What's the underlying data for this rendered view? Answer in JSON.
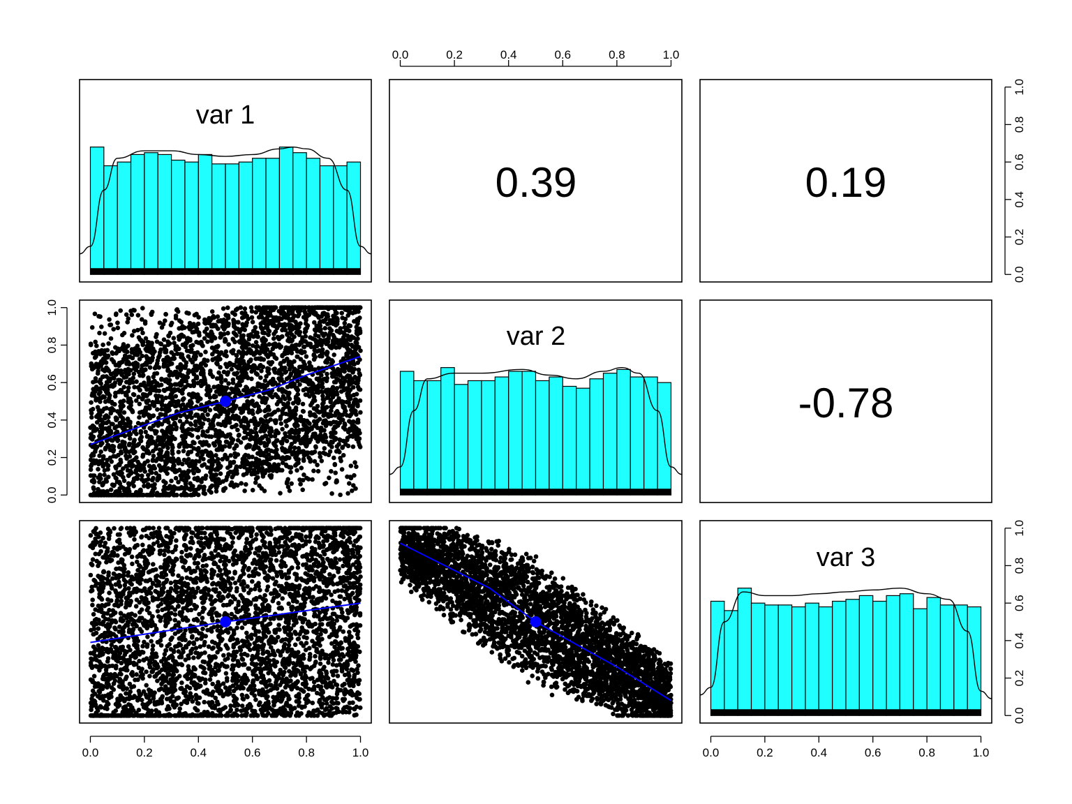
{
  "chart_data": {
    "type": "scatter",
    "layout": "pairs-matrix",
    "variables": [
      "var 1",
      "var 2",
      "var 3"
    ],
    "axis_range": [
      0,
      1
    ],
    "tick_labels": [
      "0.0",
      "0.2",
      "0.4",
      "0.6",
      "0.8",
      "1.0"
    ],
    "correlations": [
      {
        "row": 1,
        "col": 2,
        "value": "0.39"
      },
      {
        "row": 1,
        "col": 3,
        "value": "0.19"
      },
      {
        "row": 2,
        "col": 3,
        "value": "-0.78"
      }
    ],
    "histograms": [
      {
        "variable": "var 1",
        "counts": [
          0.68,
          0.58,
          0.6,
          0.64,
          0.65,
          0.64,
          0.61,
          0.6,
          0.64,
          0.59,
          0.59,
          0.6,
          0.62,
          0.62,
          0.68,
          0.65,
          0.62,
          0.58,
          0.58,
          0.6
        ],
        "density": [
          [
            0,
            0.15
          ],
          [
            0.05,
            0.45
          ],
          [
            0.1,
            0.62
          ],
          [
            0.2,
            0.66
          ],
          [
            0.3,
            0.66
          ],
          [
            0.4,
            0.64
          ],
          [
            0.5,
            0.63
          ],
          [
            0.6,
            0.64
          ],
          [
            0.7,
            0.67
          ],
          [
            0.75,
            0.68
          ],
          [
            0.8,
            0.67
          ],
          [
            0.88,
            0.62
          ],
          [
            0.95,
            0.45
          ],
          [
            1.0,
            0.15
          ]
        ]
      },
      {
        "variable": "var 2",
        "counts": [
          0.66,
          0.61,
          0.61,
          0.68,
          0.59,
          0.61,
          0.61,
          0.63,
          0.66,
          0.66,
          0.61,
          0.63,
          0.58,
          0.57,
          0.62,
          0.65,
          0.67,
          0.63,
          0.63,
          0.6
        ],
        "density": [
          [
            0,
            0.15
          ],
          [
            0.05,
            0.45
          ],
          [
            0.1,
            0.62
          ],
          [
            0.2,
            0.65
          ],
          [
            0.3,
            0.65
          ],
          [
            0.45,
            0.67
          ],
          [
            0.55,
            0.64
          ],
          [
            0.65,
            0.62
          ],
          [
            0.75,
            0.66
          ],
          [
            0.82,
            0.68
          ],
          [
            0.88,
            0.65
          ],
          [
            0.95,
            0.45
          ],
          [
            1.0,
            0.15
          ]
        ]
      },
      {
        "variable": "var 3",
        "counts": [
          0.61,
          0.56,
          0.68,
          0.6,
          0.59,
          0.59,
          0.58,
          0.6,
          0.58,
          0.61,
          0.62,
          0.64,
          0.61,
          0.64,
          0.65,
          0.57,
          0.63,
          0.59,
          0.59,
          0.58
        ],
        "density": [
          [
            0,
            0.15
          ],
          [
            0.05,
            0.5
          ],
          [
            0.12,
            0.66
          ],
          [
            0.2,
            0.64
          ],
          [
            0.3,
            0.64
          ],
          [
            0.4,
            0.65
          ],
          [
            0.5,
            0.66
          ],
          [
            0.6,
            0.67
          ],
          [
            0.7,
            0.68
          ],
          [
            0.8,
            0.65
          ],
          [
            0.88,
            0.62
          ],
          [
            0.95,
            0.45
          ],
          [
            1.0,
            0.13
          ]
        ]
      }
    ],
    "scatter_panels": [
      {
        "row": 2,
        "col": 1,
        "x": "var 1",
        "y": "var 2",
        "fit_line": [
          [
            0,
            0.27
          ],
          [
            0.33,
            0.44
          ],
          [
            0.5,
            0.5
          ],
          [
            0.66,
            0.56
          ],
          [
            0.8,
            0.64
          ],
          [
            1.0,
            0.74
          ]
        ],
        "center": [
          0.5,
          0.5
        ],
        "fit_color": "#0000ff"
      },
      {
        "row": 3,
        "col": 1,
        "x": "var 1",
        "y": "var 3",
        "fit_line": [
          [
            0,
            0.39
          ],
          [
            0.5,
            0.5
          ],
          [
            1.0,
            0.6
          ]
        ],
        "center": [
          0.5,
          0.5
        ],
        "fit_color": "#0000ff"
      },
      {
        "row": 3,
        "col": 2,
        "x": "var 2",
        "y": "var 3",
        "fit_line": [
          [
            0,
            0.92
          ],
          [
            0.33,
            0.68
          ],
          [
            0.5,
            0.5
          ],
          [
            0.8,
            0.26
          ],
          [
            1.0,
            0.08
          ]
        ],
        "center": [
          0.5,
          0.5
        ],
        "fit_color": "#0000ff"
      }
    ],
    "histogram_fill": "#20ffff",
    "point_color": "#000000",
    "grid": false,
    "legend": "none"
  }
}
